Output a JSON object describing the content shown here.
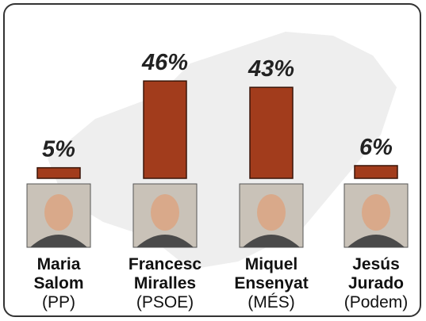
{
  "chart_data": {
    "type": "bar",
    "categories": [
      [
        "Maria",
        "Salom"
      ],
      [
        "Francesc",
        "Miralles"
      ],
      [
        "Miquel",
        "Ensenyat"
      ],
      [
        "Jesús",
        "Jurado"
      ]
    ],
    "parties": [
      "(PP)",
      "(PSOE)",
      "(MÉS)",
      "(Podem)"
    ],
    "values": [
      5,
      46,
      43,
      6
    ],
    "value_labels": [
      "5%",
      "46%",
      "43%",
      "6%"
    ],
    "color": "#a23c1c"
  }
}
